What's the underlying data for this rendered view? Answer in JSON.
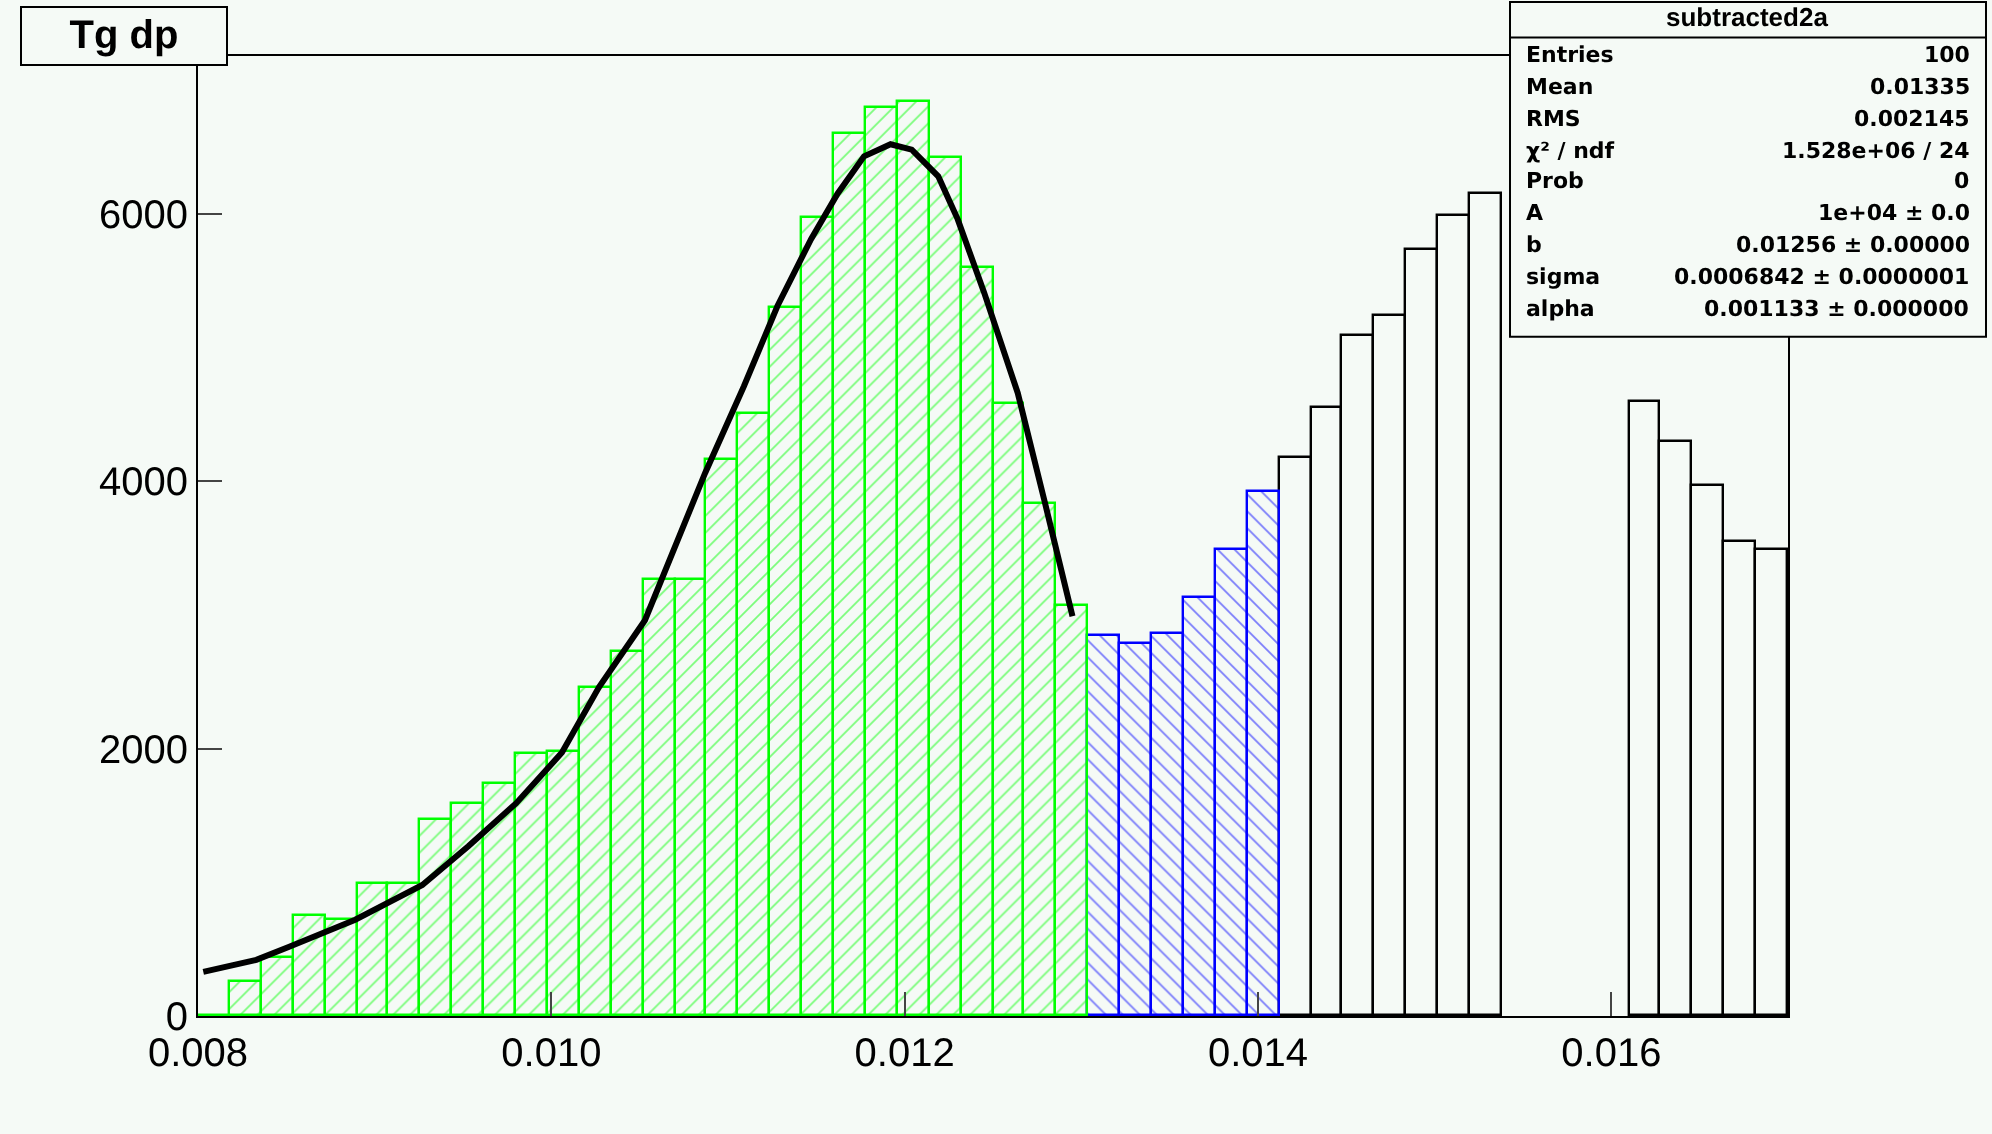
{
  "chart_data": {
    "type": "histogram",
    "title": "Tg dp",
    "xlim": [
      0.008,
      0.017
    ],
    "ylim": [
      0,
      7180
    ],
    "xticks": [
      {
        "value": 0.008,
        "label": "0.008"
      },
      {
        "value": 0.01,
        "label": "0.010"
      },
      {
        "value": 0.012,
        "label": "0.012"
      },
      {
        "value": 0.014,
        "label": "0.014"
      },
      {
        "value": 0.016,
        "label": "0.016"
      }
    ],
    "yticks": [
      0,
      2000,
      4000,
      6000
    ],
    "series": [
      {
        "color": "#000000",
        "bins": [
          0.01412,
          0.0143,
          0.01448,
          0.01466,
          0.01484,
          0.01502,
          0.0152,
          0.01538,
          0.01556,
          0.01574,
          0.01592,
          0.0161,
          0.01628,
          0.01646,
          0.01664,
          0.01682,
          0.017
        ],
        "values": [
          4170,
          4540,
          5080,
          5230,
          5730,
          5980,
          6150,
          null,
          null,
          null,
          null,
          4590,
          4300,
          3960,
          3540,
          3480
        ]
      },
      {
        "color": "#0000ff",
        "bins": [
          0.01304,
          0.01322,
          0.0134,
          0.01358,
          0.01376,
          0.01394,
          0.01412
        ],
        "values": [
          2840,
          2780,
          2860,
          3120,
          3480,
          3920
        ]
      },
      {
        "color": "#00ff00",
        "bins": [
          0.008,
          0.00818,
          0.00836,
          0.00854,
          0.00872,
          0.0089,
          0.00908,
          0.00926,
          0.00944,
          0.00962,
          0.0098,
          0.00998,
          0.01016,
          0.01034,
          0.01052,
          0.0107,
          0.01088,
          0.01106,
          0.01124,
          0.01142,
          0.0116,
          0.01178,
          0.01196,
          0.01214,
          0.01232,
          0.0125,
          0.01268,
          0.01286,
          0.01304
        ],
        "values": [
          0,
          250,
          430,
          750,
          720,
          990,
          990,
          1460,
          1590,
          1730,
          1960,
          1980,
          2450,
          2720,
          3260,
          3260,
          4160,
          4500,
          5290,
          5970,
          6590,
          6790,
          6830,
          6420,
          5600,
          4570,
          3830,
          3060
        ]
      },
      {
        "type": "line",
        "color": "#000000",
        "x": [
          0.00803,
          0.00833,
          0.00852,
          0.00889,
          0.00927,
          0.00953,
          0.0098,
          0.01006,
          0.01027,
          0.01053,
          0.01087,
          0.01109,
          0.01128,
          0.01147,
          0.01162,
          0.01177,
          0.01192,
          0.01204,
          0.01219,
          0.0123,
          0.01245,
          0.01264,
          0.01279,
          0.01295
        ],
        "values": [
          330,
          420,
          520,
          720,
          980,
          1270,
          1590,
          1970,
          2460,
          2960,
          4060,
          4710,
          5310,
          5810,
          6150,
          6430,
          6520,
          6480,
          6280,
          5960,
          5410,
          4660,
          3860,
          2990
        ]
      }
    ],
    "annotations": [
      "subtracted2a",
      "Entries\t100",
      "Mean\t0.01335",
      "RMS\t0.002145",
      "χ² / ndf\t1.528e+06 / 24",
      "Prob\t0",
      "A\t1e+04 ± 0.0",
      "b\t0.01256 ± 0.00000",
      "sigma\t0.0006842 ± 0.0000001",
      "alpha\t0.001133 ± 0.000000"
    ]
  }
}
